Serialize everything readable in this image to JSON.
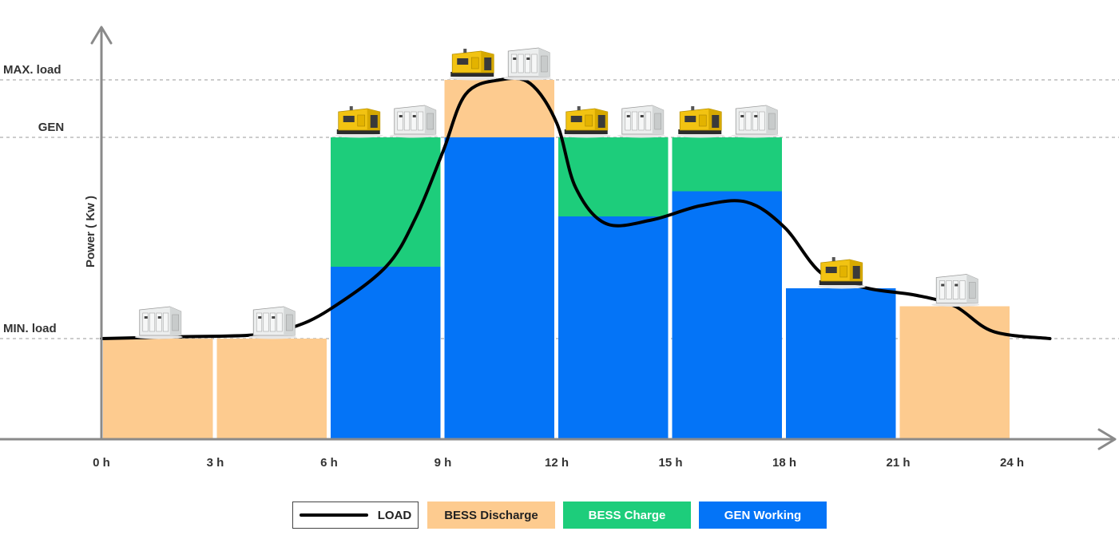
{
  "chart_data": {
    "type": "bar",
    "stacked": true,
    "ylabel": "Power ( Kw )",
    "x_ticks": [
      "0 h",
      "3 h",
      "6 h",
      "9 h",
      "12 h",
      "15 h",
      "18 h",
      "21 h",
      "24 h"
    ],
    "reference_lines": [
      {
        "label": "MAX. load",
        "value": 100
      },
      {
        "label": "GEN",
        "value": 84
      },
      {
        "label": "MIN. load",
        "value": 28
      }
    ],
    "bars": [
      {
        "gen": 0,
        "charge": 0,
        "discharge": 28,
        "icons": [
          "bess-unit-icon"
        ]
      },
      {
        "gen": 0,
        "charge": 0,
        "discharge": 28,
        "icons": [
          "bess-unit-icon"
        ]
      },
      {
        "gen": 48,
        "charge": 36,
        "discharge": 0,
        "icons": [
          "generator-icon",
          "bess-unit-icon"
        ]
      },
      {
        "gen": 84,
        "charge": 0,
        "discharge": 16,
        "icons": [
          "generator-icon",
          "bess-unit-icon"
        ]
      },
      {
        "gen": 62,
        "charge": 22,
        "discharge": 0,
        "icons": [
          "generator-icon",
          "bess-unit-icon"
        ]
      },
      {
        "gen": 69,
        "charge": 15,
        "discharge": 0,
        "icons": [
          "generator-icon",
          "bess-unit-icon"
        ]
      },
      {
        "gen": 42,
        "charge": 0,
        "discharge": 0,
        "icons": [
          "generator-icon"
        ]
      },
      {
        "gen": 0,
        "charge": 0,
        "discharge": 37,
        "icons": [
          "bess-unit-icon"
        ]
      }
    ],
    "load_curve": [
      [
        0,
        28
      ],
      [
        2,
        28.5
      ],
      [
        4,
        29
      ],
      [
        5,
        31
      ],
      [
        6,
        36
      ],
      [
        7.5,
        48
      ],
      [
        8.3,
        62
      ],
      [
        9,
        80
      ],
      [
        9.6,
        96
      ],
      [
        10.5,
        100
      ],
      [
        11.3,
        99
      ],
      [
        12,
        88
      ],
      [
        12.5,
        70
      ],
      [
        13.3,
        60
      ],
      [
        14.5,
        61
      ],
      [
        15.8,
        65
      ],
      [
        17,
        66
      ],
      [
        18,
        59
      ],
      [
        19,
        46
      ],
      [
        20.2,
        42
      ],
      [
        21.5,
        40
      ],
      [
        22.5,
        37
      ],
      [
        23.5,
        30
      ],
      [
        25,
        28
      ]
    ],
    "legend": [
      {
        "key": "load",
        "label": "LOAD"
      },
      {
        "key": "discharge",
        "label": "BESS Discharge"
      },
      {
        "key": "charge",
        "label": "BESS Charge"
      },
      {
        "key": "gen",
        "label": "GEN Working"
      }
    ],
    "colors": {
      "discharge": "#fdcb8f",
      "charge": "#1dcd7b",
      "gen": "#0474f7",
      "load": "#000000",
      "axis": "#8a8a8a",
      "grid": "#9a9a9a",
      "generator_body": "#f2c312",
      "bess_body": "#eceeee"
    }
  }
}
